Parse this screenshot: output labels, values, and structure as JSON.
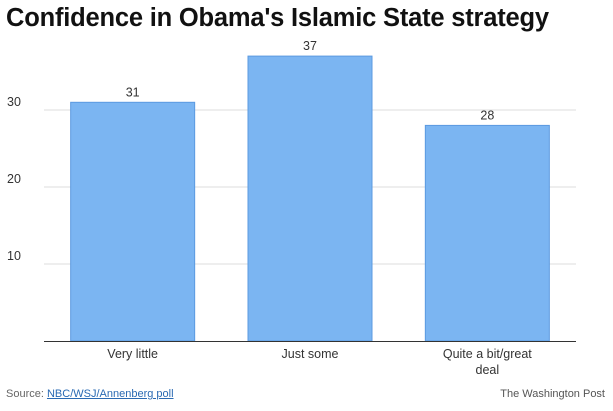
{
  "chart_data": {
    "type": "bar",
    "title": "Confidence in Obama's Islamic State strategy",
    "categories": [
      [
        "Very little"
      ],
      [
        "Just some"
      ],
      [
        "Quite a bit/great",
        "deal"
      ]
    ],
    "values": [
      31,
      37,
      28
    ],
    "data_labels": [
      "31",
      "37",
      "28"
    ],
    "yticks": [
      10,
      20,
      30
    ],
    "ylim": [
      0,
      40
    ],
    "xlabel": "",
    "ylabel": "",
    "grid": true,
    "bar_color": "#7bb5f2",
    "bar_stroke": "#5b9ae0"
  },
  "footer": {
    "source_prefix": "Source: ",
    "source_link": "NBC/WSJ/Annenberg poll",
    "credit": "The Washington Post"
  }
}
